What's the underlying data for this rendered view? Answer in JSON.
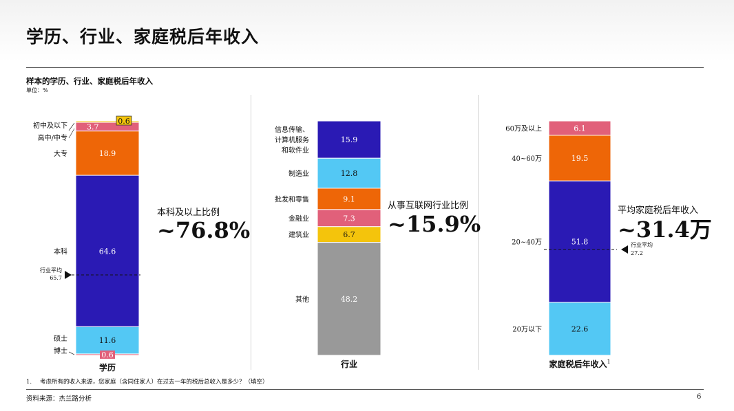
{
  "page": {
    "title": "学历、行业、家庭税后年收入",
    "subtitle": "样本的学历、行业、家庭税后年收入",
    "unit": "单位：%",
    "footnote_number": "1.",
    "footnote": "考虑所有的收入来源，您家庭（含同住家人）在过去一年的税后总收入是多少？（填空）",
    "source": "资料来源：杰兰路分析",
    "page_number": "6"
  },
  "colors": {
    "navy": "#2a1ab4",
    "sky": "#53c8f4",
    "orange": "#ee6607",
    "pink": "#e1607a",
    "yellow": "#f4c40c",
    "gray": "#999999"
  },
  "chart_data": [
    {
      "type": "bar",
      "stacked": true,
      "title": "学历",
      "unit": "%",
      "ylim": [
        0,
        100
      ],
      "segments": [
        {
          "name": "本科",
          "value": 64.6,
          "label": "64.6",
          "color": "#2a1ab4",
          "text_color": "#ffffff"
        },
        {
          "name": "大专",
          "value": 18.9,
          "label": "18.9",
          "color": "#ee6607",
          "text_color": "#ffffff"
        },
        {
          "name": "高中/中专",
          "value": 3.7,
          "label": "3.7",
          "color": "#e1607a",
          "text_color": "#ffffff"
        },
        {
          "name": "初中及以下",
          "value": 0.6,
          "label": "0.6",
          "color": "#f4c40c",
          "text_color": "#111111"
        },
        {
          "name": "硕士",
          "value": 11.6,
          "label": "11.6",
          "color": "#53c8f4",
          "text_color": "#111111"
        },
        {
          "name": "博士",
          "value": 0.6,
          "label": "0.6",
          "color": "#e1607a",
          "text_color": "#ffffff"
        }
      ],
      "average": {
        "label": "行业平均",
        "value": 65.7,
        "value_label": "65.7"
      },
      "callout": {
        "caption": "本科及以上比例",
        "value": "~76.8%"
      }
    },
    {
      "type": "bar",
      "stacked": true,
      "title": "行业",
      "unit": "%",
      "ylim": [
        0,
        100
      ],
      "segments": [
        {
          "name": "信息传输、计算机服务和软件业",
          "label_lines": [
            "信息传输、",
            "计算机服务",
            "和软件业"
          ],
          "value": 15.9,
          "label": "15.9",
          "color": "#2a1ab4",
          "text_color": "#ffffff"
        },
        {
          "name": "制造业",
          "value": 12.8,
          "label": "12.8",
          "color": "#53c8f4",
          "text_color": "#111111"
        },
        {
          "name": "批发和零售",
          "value": 9.1,
          "label": "9.1",
          "color": "#ee6607",
          "text_color": "#ffffff"
        },
        {
          "name": "金融业",
          "value": 7.3,
          "label": "7.3",
          "color": "#e1607a",
          "text_color": "#ffffff"
        },
        {
          "name": "建筑业",
          "value": 6.7,
          "label": "6.7",
          "color": "#f4c40c",
          "text_color": "#111111"
        },
        {
          "name": "其他",
          "value": 48.2,
          "label": "48.2",
          "color": "#999999",
          "text_color": "#ffffff"
        }
      ],
      "callout": {
        "caption": "从事互联网行业比例",
        "value": "~15.9%"
      }
    },
    {
      "type": "bar",
      "stacked": true,
      "title": "家庭税后年收入",
      "title_sup": "1",
      "unit": "%",
      "ylim": [
        0,
        100
      ],
      "segments": [
        {
          "name": "60万及以上",
          "value": 6.1,
          "label": "6.1",
          "color": "#e1607a",
          "text_color": "#ffffff"
        },
        {
          "name": "40~60万",
          "value": 19.5,
          "label": "19.5",
          "color": "#ee6607",
          "text_color": "#ffffff"
        },
        {
          "name": "20~40万",
          "value": 51.8,
          "label": "51.8",
          "color": "#2a1ab4",
          "text_color": "#ffffff"
        },
        {
          "name": "20万以下",
          "value": 22.6,
          "label": "22.6",
          "color": "#53c8f4",
          "text_color": "#111111"
        }
      ],
      "average": {
        "label": "行业平均",
        "value": 27.2,
        "value_label": "27.2"
      },
      "callout": {
        "caption": "平均家庭税后年收入",
        "value": "~31.4万"
      }
    }
  ]
}
